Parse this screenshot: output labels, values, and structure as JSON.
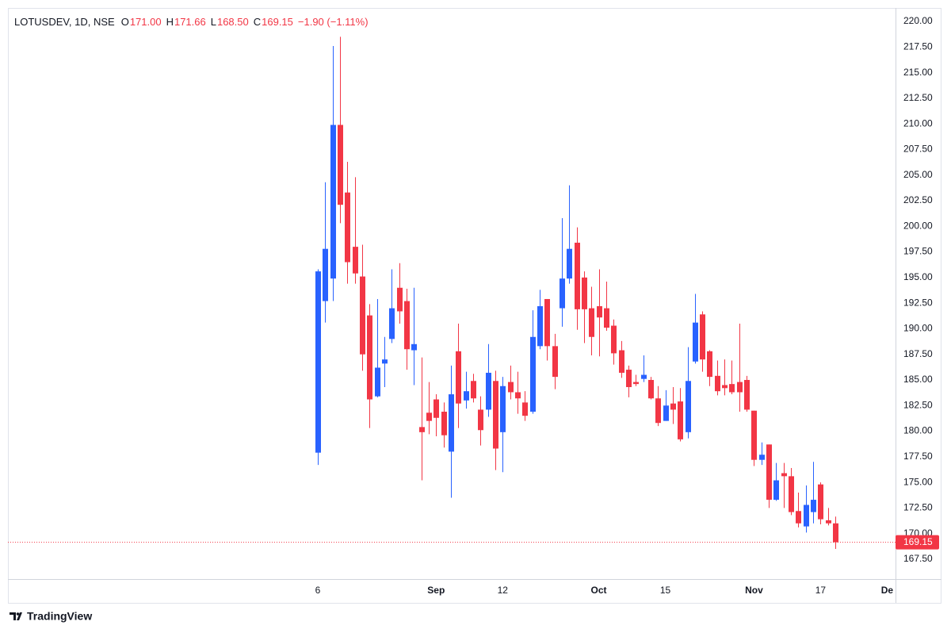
{
  "chart_data": {
    "type": "candlestick",
    "title": "LOTUSDEV, 1D, NSE",
    "ohlc_legend": [
      {
        "key": "O",
        "value": "171.00"
      },
      {
        "key": "H",
        "value": "171.66"
      },
      {
        "key": "L",
        "value": "168.50"
      },
      {
        "key": "C",
        "value": "169.15"
      }
    ],
    "change": "−1.90 (−1.11%)",
    "brand": "TradingView",
    "up_color": "#2962ff",
    "down_color": "#f23645",
    "categories": [
      "6",
      null,
      null,
      null,
      null,
      null,
      null,
      null,
      null,
      null,
      null,
      null,
      null,
      null,
      null,
      null,
      "Sep",
      null,
      null,
      null,
      null,
      null,
      null,
      null,
      null,
      "12",
      null,
      null,
      null,
      null,
      null,
      null,
      null,
      null,
      null,
      null,
      null,
      null,
      "Oct",
      null,
      null,
      null,
      null,
      null,
      null,
      null,
      null,
      "15",
      null,
      null,
      null,
      null,
      null,
      null,
      null,
      null,
      null,
      null,
      null,
      "Nov",
      null,
      null,
      null,
      null,
      null,
      null,
      null,
      null,
      "17",
      null,
      null,
      null,
      null,
      null,
      null,
      null,
      null,
      "De"
    ],
    "open": [
      177.9,
      192.7,
      194.9,
      209.9,
      203.3,
      198.0,
      195.1,
      191.3,
      183.4,
      186.6,
      189.0,
      194.0,
      192.7,
      187.9,
      180.4,
      181.8,
      183.1,
      181.9,
      178.0,
      187.8,
      183.0,
      184.9,
      182.1,
      182.1,
      184.9,
      179.9,
      184.8,
      183.8,
      182.8,
      181.9,
      188.3,
      192.9,
      188.3,
      192.0,
      194.9,
      198.4,
      195.0,
      192.0,
      192.2,
      192.0,
      190.3,
      187.9,
      186.0,
      184.8,
      185.1,
      185.0,
      183.2,
      181.0,
      182.7,
      182.9,
      179.9,
      186.8,
      191.4,
      187.8,
      185.4,
      184.5,
      184.6,
      184.8,
      185.0,
      182.0,
      177.2,
      178.7,
      173.3,
      175.9,
      175.6,
      172.2,
      170.7,
      172.1,
      174.8,
      171.3,
      171.0,
      null,
      null,
      null,
      null,
      null,
      null,
      null
    ],
    "high": [
      195.8,
      204.3,
      217.6,
      218.5,
      206.3,
      204.8,
      198.2,
      192.4,
      192.9,
      189.2,
      195.8,
      196.4,
      193.9,
      194.0,
      187.2,
      184.8,
      183.6,
      182.8,
      186.4,
      190.5,
      185.8,
      185.6,
      183.4,
      188.5,
      185.9,
      185.3,
      186.4,
      185.8,
      183.9,
      191.8,
      193.8,
      192.9,
      189.5,
      200.8,
      204.0,
      199.9,
      195.6,
      194.1,
      195.8,
      194.6,
      190.9,
      188.8,
      186.4,
      185.5,
      187.4,
      185.3,
      184.4,
      184.0,
      184.3,
      184.2,
      188.2,
      193.4,
      191.7,
      187.9,
      186.9,
      187.0,
      186.9,
      190.5,
      185.4,
      182.0,
      178.9,
      178.7,
      176.9,
      176.9,
      176.4,
      174.0,
      174.7,
      177.0,
      175.0,
      172.5,
      171.66,
      null,
      null,
      null,
      null,
      null,
      null,
      null
    ],
    "low": [
      176.7,
      190.6,
      192.7,
      200.3,
      194.4,
      194.4,
      185.9,
      180.3,
      183.3,
      184.3,
      188.6,
      190.5,
      186.0,
      184.5,
      175.2,
      179.7,
      179.5,
      178.4,
      173.5,
      180.3,
      182.2,
      182.8,
      178.6,
      181.4,
      176.2,
      176.0,
      183.1,
      181.7,
      181.0,
      181.7,
      188.0,
      186.9,
      184.1,
      190.2,
      194.4,
      189.9,
      188.6,
      187.4,
      187.3,
      189.8,
      186.5,
      185.2,
      183.3,
      184.4,
      184.8,
      183.1,
      180.5,
      181.0,
      180.7,
      179.0,
      179.3,
      186.6,
      185.8,
      184.4,
      183.5,
      183.5,
      183.6,
      181.9,
      181.9,
      176.6,
      176.7,
      172.5,
      173.2,
      172.5,
      171.8,
      170.6,
      170.1,
      171.0,
      170.9,
      170.8,
      168.5,
      null,
      null,
      null,
      null,
      null,
      null,
      null
    ],
    "close": [
      195.6,
      197.8,
      209.9,
      202.1,
      196.5,
      195.4,
      187.5,
      183.1,
      186.2,
      187.0,
      192.0,
      191.7,
      188.0,
      188.5,
      179.9,
      181.0,
      181.3,
      179.6,
      183.6,
      182.7,
      183.9,
      183.2,
      180.1,
      185.7,
      178.3,
      184.4,
      183.8,
      183.2,
      181.5,
      189.2,
      192.2,
      188.3,
      185.3,
      194.9,
      197.8,
      191.9,
      191.9,
      189.2,
      191.1,
      190.1,
      187.6,
      185.7,
      184.3,
      184.6,
      185.5,
      183.2,
      180.8,
      182.5,
      182.1,
      179.2,
      184.9,
      190.6,
      187.0,
      185.3,
      183.9,
      184.2,
      183.8,
      183.8,
      182.1,
      177.2,
      177.7,
      173.3,
      175.2,
      175.6,
      172.1,
      171.0,
      172.8,
      173.3,
      171.4,
      171.0,
      169.15,
      null,
      null,
      null,
      null,
      null,
      null,
      null
    ],
    "ylim": [
      165.56,
      221.32
    ],
    "yticks": [
      {
        "value": 167.5,
        "label": "167.50"
      },
      {
        "value": 170,
        "label": "170.00"
      },
      {
        "value": 172.5,
        "label": "172.50"
      },
      {
        "value": 175,
        "label": "175.00"
      },
      {
        "value": 177.5,
        "label": "177.50"
      },
      {
        "value": 180,
        "label": "180.00"
      },
      {
        "value": 182.5,
        "label": "182.50"
      },
      {
        "value": 185,
        "label": "185.00"
      },
      {
        "value": 187.5,
        "label": "187.50"
      },
      {
        "value": 190,
        "label": "190.00"
      },
      {
        "value": 192.5,
        "label": "192.50"
      },
      {
        "value": 195,
        "label": "195.00"
      },
      {
        "value": 197.5,
        "label": "197.50"
      },
      {
        "value": 200,
        "label": "200.00"
      },
      {
        "value": 202.5,
        "label": "202.50"
      },
      {
        "value": 205,
        "label": "205.00"
      },
      {
        "value": 207.5,
        "label": "207.50"
      },
      {
        "value": 210,
        "label": "210.00"
      },
      {
        "value": 212.5,
        "label": "212.50"
      },
      {
        "value": 215,
        "label": "215.00"
      },
      {
        "value": 217.5,
        "label": "217.50"
      },
      {
        "value": 220,
        "label": "220.00"
      }
    ],
    "grid": false
  }
}
